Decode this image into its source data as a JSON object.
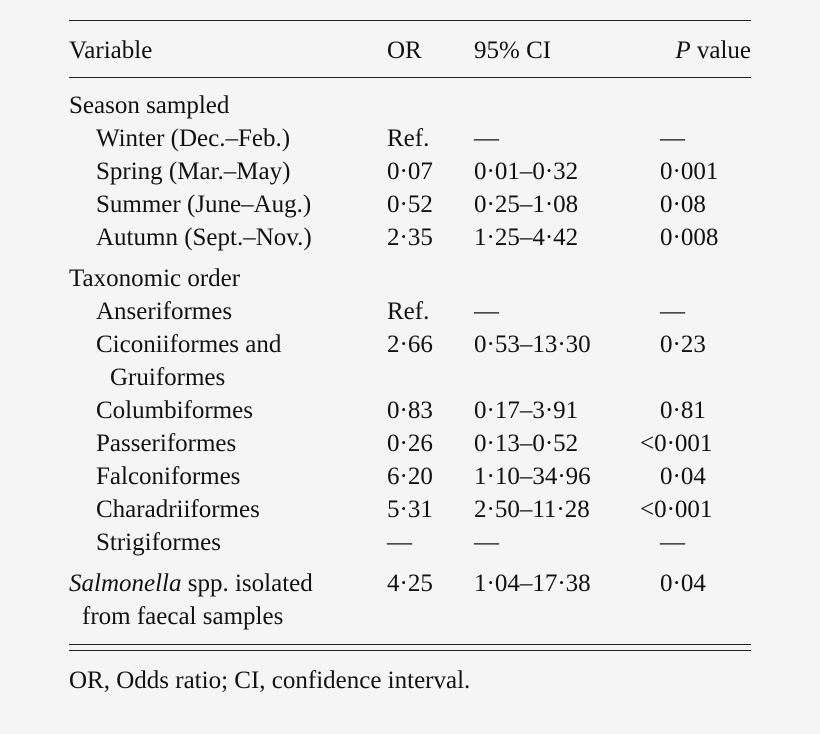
{
  "header": {
    "variable": "Variable",
    "or": "OR",
    "ci": "95% CI",
    "p_italic": "P",
    "p_rest": " value"
  },
  "sections": [
    {
      "title": "Season sampled",
      "rows": [
        {
          "label": "Winter (Dec.–Feb.)",
          "or": "Ref.",
          "ci": "—",
          "p": "—"
        },
        {
          "label": "Spring (Mar.–May)",
          "or": "0·07",
          "ci": "0·01–0·32",
          "p": "0·001"
        },
        {
          "label": "Summer (June–Aug.)",
          "or": "0·52",
          "ci": "0·25–1·08",
          "p": "0·08"
        },
        {
          "label": "Autumn (Sept.–Nov.)",
          "or": "2·35",
          "ci": "1·25–4·42",
          "p": "0·008"
        }
      ]
    },
    {
      "title": "Taxonomic order",
      "rows": [
        {
          "label": "Anseriformes",
          "or": "Ref.",
          "ci": "—",
          "p": "—"
        },
        {
          "label": "Ciconiiformes and",
          "label2": "Gruiformes",
          "or": "2·66",
          "ci": "0·53–13·30",
          "p": "0·23"
        },
        {
          "label": "Columbiformes",
          "or": "0·83",
          "ci": "0·17–3·91",
          "p": "0·81"
        },
        {
          "label": "Passeriformes",
          "or": "0·26",
          "ci": "0·13–0·52",
          "p": "<0·001"
        },
        {
          "label": "Falconiformes",
          "or": "6·20",
          "ci": "1·10–34·96",
          "p": "0·04"
        },
        {
          "label": "Charadriiformes",
          "or": "5·31",
          "ci": "2·50–11·28",
          "p": "<0·001"
        },
        {
          "label": "Strigiformes",
          "or": "—",
          "ci": "—",
          "p": "—"
        }
      ]
    }
  ],
  "salmonella": {
    "label_italic": "Salmonella",
    "label_rest": " spp. isolated",
    "label2": "from faecal samples",
    "or": "4·25",
    "ci": "1·04–17·38",
    "p": "0·04"
  },
  "footnote": "OR, Odds ratio; CI, confidence interval."
}
